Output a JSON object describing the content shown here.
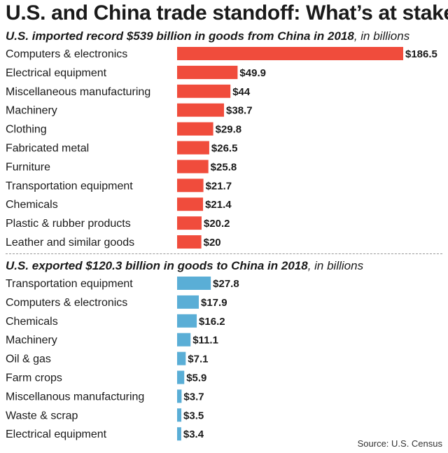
{
  "title": "U.S. and China trade standoff: What’s at stake",
  "chart_data": [
    {
      "type": "bar",
      "orientation": "horizontal",
      "subtitle_bold": "U.S. imported record $539 billion in goods from China in 2018",
      "subtitle_rest": ", in billions",
      "categories": [
        "Computers & electronics",
        "Electrical equipment",
        "Miscellaneous manufacturing",
        "Machinery",
        "Clothing",
        "Fabricated metal",
        "Furniture",
        "Transportation equipment",
        "Chemicals",
        "Plastic & rubber products",
        "Leather and similar goods"
      ],
      "values": [
        186.5,
        49.9,
        44,
        38.7,
        29.8,
        26.5,
        25.8,
        21.7,
        21.4,
        20.2,
        20
      ],
      "value_labels": [
        "$186.5",
        "$49.9",
        "$44",
        "$38.7",
        "$29.8",
        "$26.5",
        "$25.8",
        "$21.7",
        "$21.4",
        "$20.2",
        "$20"
      ],
      "color": "#f04c3c",
      "xlim": [
        0,
        186.5
      ]
    },
    {
      "type": "bar",
      "orientation": "horizontal",
      "subtitle_bold": "U.S. exported $120.3 billion in goods to China in 2018",
      "subtitle_rest": ", in billions",
      "categories": [
        "Transportation equipment",
        "Computers & electronics",
        "Chemicals",
        "Machinery",
        "Oil & gas",
        "Farm crops",
        "Miscellanous manufacturing",
        "Waste & scrap",
        "Electrical equipment"
      ],
      "values": [
        27.8,
        17.9,
        16.2,
        11.1,
        7.1,
        5.9,
        3.7,
        3.5,
        3.4
      ],
      "value_labels": [
        "$27.8",
        "$17.9",
        "$16.2",
        "$11.1",
        "$7.1",
        "$5.9",
        "$3.7",
        "$3.5",
        "$3.4"
      ],
      "color": "#5aaed6",
      "xlim": [
        0,
        186.5
      ]
    }
  ],
  "source": "Source: U.S. Census"
}
